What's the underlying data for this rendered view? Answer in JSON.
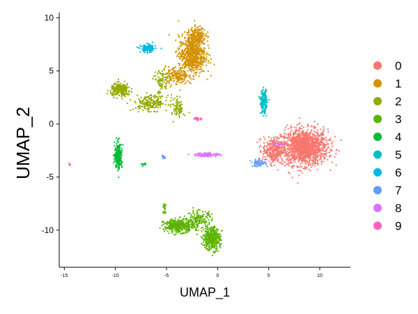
{
  "chart_data": {
    "type": "scatter",
    "title": "",
    "xlabel": "UMAP_1",
    "ylabel": "UMAP_2",
    "xlim": [
      -15.5,
      13
    ],
    "ylim": [
      -13.5,
      10.5
    ],
    "xticks": [
      "-15",
      "-10",
      "-5",
      "0",
      "5",
      "10"
    ],
    "yticks": [
      "10",
      "5",
      "0",
      "-5",
      "-10"
    ],
    "legend_position": "right",
    "grid": false,
    "series": [
      {
        "name": "0",
        "color": "#F8766D",
        "clusters": [
          {
            "cx": 8.5,
            "cy": -2.2,
            "sx": 1.9,
            "sy": 1.4,
            "n": 1400
          },
          {
            "cx": 5.5,
            "cy": -2.5,
            "sx": 0.9,
            "sy": 1.0,
            "n": 300
          }
        ]
      },
      {
        "name": "1",
        "color": "#D39200",
        "clusters": [
          {
            "cx": -2.5,
            "cy": 6.5,
            "sx": 1.1,
            "sy": 1.5,
            "n": 700
          },
          {
            "cx": -2.0,
            "cy": 8.3,
            "sx": 0.7,
            "sy": 0.7,
            "n": 200
          },
          {
            "cx": -4.0,
            "cy": 4.5,
            "sx": 0.9,
            "sy": 0.7,
            "n": 150
          }
        ]
      },
      {
        "name": "2",
        "color": "#93AA00",
        "clusters": [
          {
            "cx": -9.5,
            "cy": 3.2,
            "sx": 0.8,
            "sy": 0.5,
            "n": 250
          },
          {
            "cx": -6.5,
            "cy": 2.0,
            "sx": 1.4,
            "sy": 0.6,
            "n": 200
          },
          {
            "cx": -5.5,
            "cy": 4.0,
            "sx": 0.6,
            "sy": 1.0,
            "n": 80
          },
          {
            "cx": -3.8,
            "cy": 1.5,
            "sx": 0.4,
            "sy": 0.8,
            "n": 80
          }
        ]
      },
      {
        "name": "3",
        "color": "#5EB300",
        "clusters": [
          {
            "cx": -3.8,
            "cy": -9.6,
            "sx": 1.2,
            "sy": 0.5,
            "n": 400
          },
          {
            "cx": -0.6,
            "cy": -10.8,
            "sx": 0.7,
            "sy": 0.9,
            "n": 400
          },
          {
            "cx": -1.8,
            "cy": -9.0,
            "sx": 1.0,
            "sy": 0.7,
            "n": 150
          },
          {
            "cx": -5.2,
            "cy": -8.0,
            "sx": 0.2,
            "sy": 0.6,
            "n": 20
          }
        ]
      },
      {
        "name": "4",
        "color": "#00BA38",
        "clusters": [
          {
            "cx": -9.7,
            "cy": -3.0,
            "sx": 0.3,
            "sy": 1.0,
            "n": 250
          },
          {
            "cx": -7.2,
            "cy": -3.8,
            "sx": 0.3,
            "sy": 0.1,
            "n": 12
          }
        ]
      },
      {
        "name": "5",
        "color": "#00BFC4",
        "clusters": [
          {
            "cx": 4.5,
            "cy": 2.1,
            "sx": 0.25,
            "sy": 0.9,
            "n": 170
          }
        ]
      },
      {
        "name": "6",
        "color": "#00B9E3",
        "clusters": [
          {
            "cx": -6.8,
            "cy": 7.1,
            "sx": 0.6,
            "sy": 0.3,
            "n": 150
          }
        ]
      },
      {
        "name": "7",
        "color": "#619CFF",
        "clusters": [
          {
            "cx": 4.0,
            "cy": -3.7,
            "sx": 0.6,
            "sy": 0.25,
            "n": 60
          },
          {
            "cx": -5.3,
            "cy": -3.1,
            "sx": 0.15,
            "sy": 0.15,
            "n": 10
          }
        ]
      },
      {
        "name": "8",
        "color": "#DB72FB",
        "clusters": [
          {
            "cx": -1.0,
            "cy": -2.9,
            "sx": 1.0,
            "sy": 0.15,
            "n": 110
          },
          {
            "cx": 6.0,
            "cy": -1.9,
            "sx": 0.5,
            "sy": 0.15,
            "n": 25
          }
        ]
      },
      {
        "name": "9",
        "color": "#FF61C3",
        "clusters": [
          {
            "cx": -2.0,
            "cy": 0.5,
            "sx": 0.4,
            "sy": 0.15,
            "n": 20
          },
          {
            "cx": -14.5,
            "cy": -3.8,
            "sx": 0.1,
            "sy": 0.1,
            "n": 5
          }
        ]
      }
    ]
  }
}
